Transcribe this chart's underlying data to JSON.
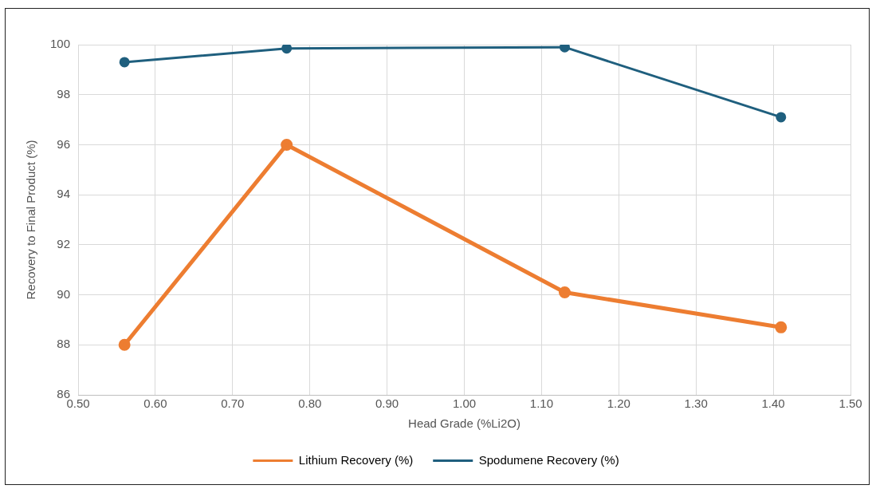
{
  "chart_data": {
    "type": "line",
    "xlabel": "Head Grade (%Li2O)",
    "ylabel": "Recovery to Final Product (%)",
    "series": [
      {
        "name": "Lithium Recovery (%)",
        "color": "#ed7d31",
        "x": [
          0.56,
          0.77,
          1.13,
          1.41
        ],
        "values": [
          88.0,
          96.0,
          90.1,
          88.7
        ]
      },
      {
        "name": "Spodumene Recovery (%)",
        "color": "#1f5f7e",
        "x": [
          0.56,
          0.77,
          1.13,
          1.41
        ],
        "values": [
          99.3,
          99.85,
          99.9,
          97.1
        ]
      }
    ],
    "xlim": [
      0.5,
      1.5
    ],
    "xticks": [
      {
        "value": 0.5,
        "label": "0.50"
      },
      {
        "value": 0.6,
        "label": "0.60"
      },
      {
        "value": 0.7,
        "label": "0.70"
      },
      {
        "value": 0.8,
        "label": "0.80"
      },
      {
        "value": 0.9,
        "label": "0.90"
      },
      {
        "value": 1.0,
        "label": "1.00"
      },
      {
        "value": 1.1,
        "label": "1.10"
      },
      {
        "value": 1.2,
        "label": "1.20"
      },
      {
        "value": 1.3,
        "label": "1.30"
      },
      {
        "value": 1.4,
        "label": "1.40"
      },
      {
        "value": 1.5,
        "label": "1.50"
      }
    ],
    "ylim": [
      86,
      100
    ],
    "yticks": [
      86,
      88,
      90,
      92,
      94,
      96,
      98,
      100
    ],
    "grid": true,
    "legend": "bottom",
    "marker": "circle",
    "line_style": "solid"
  }
}
